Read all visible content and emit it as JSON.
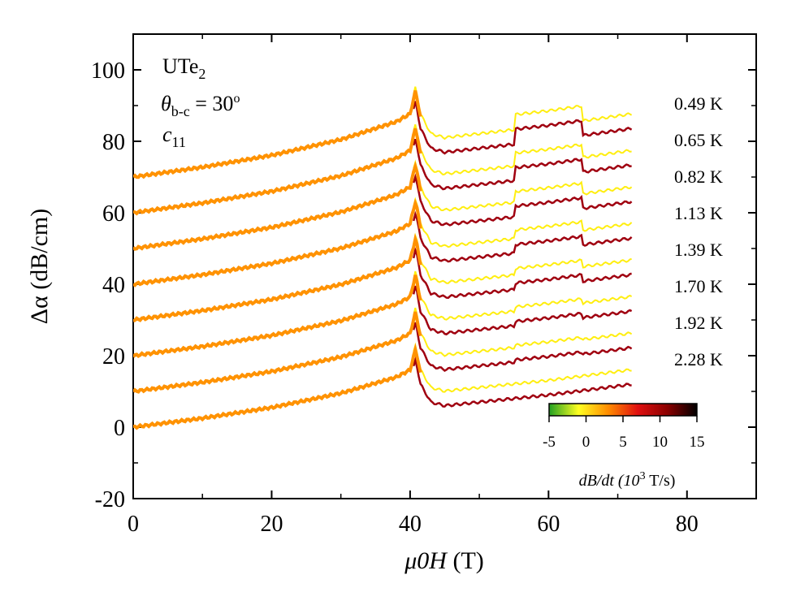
{
  "chart_data": {
    "type": "line",
    "title": "",
    "xlabel_italic": "μ0H",
    "xlabel_unit": " (T)",
    "ylabel_symbol": "Δα",
    "ylabel_unit": " (dB/cm)",
    "xlim": [
      0,
      90
    ],
    "ylim": [
      -20,
      110
    ],
    "x_ticks": [
      0,
      20,
      40,
      60,
      80
    ],
    "y_ticks": [
      -20,
      0,
      20,
      40,
      60,
      80,
      100
    ],
    "annotations": {
      "sample": "UTe",
      "sample_sub": "2",
      "angle_symbol": "θ",
      "angle_sub": "b-c",
      "angle_value": " = 30",
      "angle_sup": "o",
      "mode": "c",
      "mode_sub": "11"
    },
    "colorbar": {
      "label": "dB/dt (10",
      "label_sup": "3",
      "label_unit": " T/s)",
      "range": [
        -5,
        15
      ],
      "ticks": [
        -5,
        0,
        5,
        10,
        15
      ],
      "colors": [
        "#22a022",
        "#ffff22",
        "#ff8c00",
        "#e01010",
        "#8b0000",
        "#000000"
      ]
    },
    "series": [
      {
        "name": "0.49 K",
        "offset": 70,
        "color_up": "#ff9200",
        "color_down": "#ffee10"
      },
      {
        "name": "0.65 K",
        "offset": 60,
        "color_up": "#ff9200",
        "color_down": "#ffee10"
      },
      {
        "name": "0.82 K",
        "offset": 50,
        "color_up": "#ff9200",
        "color_down": "#ffee10"
      },
      {
        "name": "1.13 K",
        "offset": 40,
        "color_up": "#ff9200",
        "color_down": "#ffee10"
      },
      {
        "name": "1.39 K",
        "offset": 30,
        "color_up": "#ff9200",
        "color_down": "#ffee10"
      },
      {
        "name": "1.70 K",
        "offset": 20,
        "color_up": "#ff9200",
        "color_down": "#ffee10"
      },
      {
        "name": "1.92 K",
        "offset": 10,
        "color_up": "#ff9200",
        "color_down": "#ffee10"
      },
      {
        "name": "2.28 K",
        "offset": 0,
        "color_up": "#ff9200",
        "color_down": "#ffee10"
      }
    ],
    "curve_shape": {
      "x": [
        0,
        10,
        20,
        30,
        38,
        40,
        40.8,
        41.5,
        43,
        45,
        50,
        60,
        70,
        72
      ],
      "y": [
        0,
        2.5,
        5.5,
        9.5,
        14,
        16,
        22,
        15,
        10,
        9,
        10,
        12,
        14.5,
        15
      ]
    }
  }
}
